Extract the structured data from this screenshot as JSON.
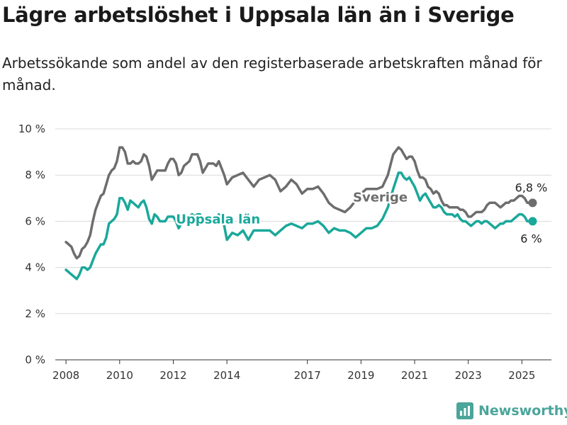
{
  "title": "Lägre arbetslöshet i Uppsala län än i Sverige",
  "subtitle": "Arbetssökande som andel av den registerbaserade arbetskraften månad för månad.",
  "brand": {
    "name": "Newsworthy",
    "icon": "newsworthy-logo-icon",
    "color": "#4aa59a"
  },
  "chart_data": {
    "type": "line",
    "x_axis": {
      "range": [
        2007.6,
        2026.1
      ],
      "tick_values": [
        2008,
        2010,
        2012,
        2014,
        2017,
        2019,
        2021,
        2023,
        2025
      ],
      "tick_labels": [
        "2008",
        "2010",
        "2012",
        "2014",
        "2017",
        "2019",
        "2021",
        "2023",
        "2025"
      ]
    },
    "y_axis": {
      "range": [
        0,
        10
      ],
      "tick_values": [
        0,
        2,
        4,
        6,
        8,
        10
      ],
      "tick_labels": [
        "0 %",
        "2 %",
        "4 %",
        "6 %",
        "8 %",
        "10 %"
      ]
    },
    "grid": "horizontal",
    "series": [
      {
        "name": "Sverige",
        "color": "#6d6d6d",
        "end_label": "6,8 %",
        "x": [
          2008.0,
          2008.1,
          2008.2,
          2008.3,
          2008.4,
          2008.5,
          2008.6,
          2008.7,
          2008.8,
          2008.9,
          2009.0,
          2009.1,
          2009.2,
          2009.3,
          2009.4,
          2009.5,
          2009.6,
          2009.7,
          2009.8,
          2009.9,
          2010.0,
          2010.1,
          2010.2,
          2010.3,
          2010.4,
          2010.5,
          2010.6,
          2010.7,
          2010.8,
          2010.9,
          2011.0,
          2011.1,
          2011.2,
          2011.3,
          2011.4,
          2011.5,
          2011.6,
          2011.7,
          2011.8,
          2011.9,
          2012.0,
          2012.1,
          2012.2,
          2012.3,
          2012.4,
          2012.5,
          2012.6,
          2012.7,
          2012.8,
          2012.9,
          2013.0,
          2013.1,
          2013.2,
          2013.3,
          2013.4,
          2013.5,
          2013.6,
          2013.7,
          2013.8,
          2013.9,
          2014.0,
          2014.2,
          2014.4,
          2014.6,
          2014.8,
          2015.0,
          2015.2,
          2015.4,
          2015.6,
          2015.8,
          2016.0,
          2016.2,
          2016.4,
          2016.6,
          2016.8,
          2017.0,
          2017.2,
          2017.4,
          2017.6,
          2017.8,
          2018.0,
          2018.2,
          2018.4,
          2018.6,
          2018.8,
          2019.0,
          2019.2,
          2019.4,
          2019.6,
          2019.8,
          2020.0,
          2020.2,
          2020.4,
          2020.5,
          2020.6,
          2020.7,
          2020.8,
          2020.9,
          2021.0,
          2021.1,
          2021.2,
          2021.3,
          2021.4,
          2021.5,
          2021.6,
          2021.7,
          2021.8,
          2021.9,
          2022.0,
          2022.1,
          2022.2,
          2022.3,
          2022.4,
          2022.5,
          2022.6,
          2022.7,
          2022.8,
          2022.9,
          2023.0,
          2023.1,
          2023.2,
          2023.3,
          2023.4,
          2023.5,
          2023.6,
          2023.7,
          2023.8,
          2023.9,
          2024.0,
          2024.1,
          2024.2,
          2024.3,
          2024.4,
          2024.5,
          2024.6,
          2024.7,
          2024.8,
          2024.9,
          2025.0,
          2025.1,
          2025.2,
          2025.3,
          2025.4
        ],
        "values": [
          5.1,
          5.0,
          4.9,
          4.6,
          4.4,
          4.5,
          4.8,
          4.9,
          5.1,
          5.4,
          6.0,
          6.5,
          6.8,
          7.1,
          7.2,
          7.6,
          8.0,
          8.2,
          8.3,
          8.6,
          9.2,
          9.2,
          9.0,
          8.5,
          8.5,
          8.6,
          8.5,
          8.5,
          8.6,
          8.9,
          8.8,
          8.4,
          7.8,
          8.0,
          8.2,
          8.2,
          8.2,
          8.2,
          8.5,
          8.7,
          8.7,
          8.5,
          8.0,
          8.1,
          8.4,
          8.5,
          8.6,
          8.9,
          8.9,
          8.9,
          8.6,
          8.1,
          8.3,
          8.5,
          8.5,
          8.5,
          8.4,
          8.6,
          8.3,
          8.0,
          7.6,
          7.9,
          8.0,
          8.1,
          7.8,
          7.5,
          7.8,
          7.9,
          8.0,
          7.8,
          7.3,
          7.5,
          7.8,
          7.6,
          7.2,
          7.4,
          7.4,
          7.5,
          7.2,
          6.8,
          6.6,
          6.5,
          6.4,
          6.6,
          6.9,
          7.2,
          7.4,
          7.4,
          7.4,
          7.5,
          8.0,
          8.9,
          9.2,
          9.1,
          8.9,
          8.7,
          8.8,
          8.8,
          8.6,
          8.2,
          7.9,
          7.9,
          7.8,
          7.5,
          7.4,
          7.2,
          7.3,
          7.2,
          6.9,
          6.7,
          6.7,
          6.6,
          6.6,
          6.6,
          6.6,
          6.5,
          6.5,
          6.4,
          6.2,
          6.2,
          6.3,
          6.4,
          6.4,
          6.4,
          6.5,
          6.7,
          6.8,
          6.8,
          6.8,
          6.7,
          6.6,
          6.7,
          6.8,
          6.8,
          6.9,
          6.9,
          7.0,
          7.1,
          7.1,
          7.0,
          6.8,
          6.8,
          6.8
        ]
      },
      {
        "name": "Uppsala län",
        "color": "#1aa89a",
        "end_label": "6 %",
        "x": [
          2008.0,
          2008.1,
          2008.2,
          2008.3,
          2008.4,
          2008.5,
          2008.6,
          2008.7,
          2008.8,
          2008.9,
          2009.0,
          2009.1,
          2009.2,
          2009.3,
          2009.4,
          2009.5,
          2009.6,
          2009.7,
          2009.8,
          2009.9,
          2010.0,
          2010.1,
          2010.2,
          2010.3,
          2010.4,
          2010.5,
          2010.6,
          2010.7,
          2010.8,
          2010.9,
          2011.0,
          2011.1,
          2011.2,
          2011.3,
          2011.4,
          2011.5,
          2011.6,
          2011.7,
          2011.8,
          2011.9,
          2012.0,
          2012.1,
          2012.2,
          2012.3,
          2012.4,
          2012.5,
          2012.6,
          2012.7,
          2012.8,
          2012.9,
          2013.0,
          2013.1,
          2013.2,
          2013.3,
          2013.4,
          2013.5,
          2013.6,
          2013.7,
          2013.8,
          2013.9,
          2014.0,
          2014.2,
          2014.4,
          2014.6,
          2014.8,
          2015.0,
          2015.2,
          2015.4,
          2015.6,
          2015.8,
          2016.0,
          2016.2,
          2016.4,
          2016.6,
          2016.8,
          2017.0,
          2017.2,
          2017.4,
          2017.6,
          2017.8,
          2018.0,
          2018.2,
          2018.4,
          2018.6,
          2018.8,
          2019.0,
          2019.2,
          2019.4,
          2019.6,
          2019.8,
          2020.0,
          2020.2,
          2020.4,
          2020.5,
          2020.6,
          2020.7,
          2020.8,
          2020.9,
          2021.0,
          2021.1,
          2021.2,
          2021.3,
          2021.4,
          2021.5,
          2021.6,
          2021.7,
          2021.8,
          2021.9,
          2022.0,
          2022.1,
          2022.2,
          2022.3,
          2022.4,
          2022.5,
          2022.6,
          2022.7,
          2022.8,
          2022.9,
          2023.0,
          2023.1,
          2023.2,
          2023.3,
          2023.4,
          2023.5,
          2023.6,
          2023.7,
          2023.8,
          2023.9,
          2024.0,
          2024.1,
          2024.2,
          2024.3,
          2024.4,
          2024.5,
          2024.6,
          2024.7,
          2024.8,
          2024.9,
          2025.0,
          2025.1,
          2025.2,
          2025.3,
          2025.4
        ],
        "values": [
          3.9,
          3.8,
          3.7,
          3.6,
          3.5,
          3.7,
          4.0,
          4.0,
          3.9,
          4.0,
          4.3,
          4.6,
          4.8,
          5.0,
          5.0,
          5.3,
          5.9,
          6.0,
          6.1,
          6.3,
          7.0,
          7.0,
          6.8,
          6.5,
          6.9,
          6.8,
          6.7,
          6.6,
          6.8,
          6.9,
          6.6,
          6.1,
          5.9,
          6.3,
          6.2,
          6.0,
          6.0,
          6.0,
          6.2,
          6.2,
          6.2,
          6.0,
          5.7,
          5.9,
          6.0,
          6.1,
          6.2,
          6.3,
          6.2,
          6.3,
          6.3,
          6.0,
          5.9,
          6.1,
          6.2,
          6.2,
          6.1,
          6.3,
          6.1,
          5.8,
          5.2,
          5.5,
          5.4,
          5.6,
          5.2,
          5.6,
          5.6,
          5.6,
          5.6,
          5.4,
          5.6,
          5.8,
          5.9,
          5.8,
          5.7,
          5.9,
          5.9,
          6.0,
          5.8,
          5.5,
          5.7,
          5.6,
          5.6,
          5.5,
          5.3,
          5.5,
          5.7,
          5.7,
          5.8,
          6.1,
          6.6,
          7.4,
          8.1,
          8.1,
          7.9,
          7.8,
          7.9,
          7.7,
          7.5,
          7.2,
          6.9,
          7.1,
          7.2,
          7.0,
          6.8,
          6.6,
          6.6,
          6.7,
          6.6,
          6.4,
          6.3,
          6.3,
          6.3,
          6.2,
          6.3,
          6.1,
          6.0,
          6.0,
          5.9,
          5.8,
          5.9,
          6.0,
          6.0,
          5.9,
          6.0,
          6.0,
          5.9,
          5.8,
          5.7,
          5.8,
          5.9,
          5.9,
          6.0,
          6.0,
          6.0,
          6.1,
          6.2,
          6.3,
          6.3,
          6.2,
          6.0,
          6.0,
          6.0
        ]
      }
    ]
  }
}
